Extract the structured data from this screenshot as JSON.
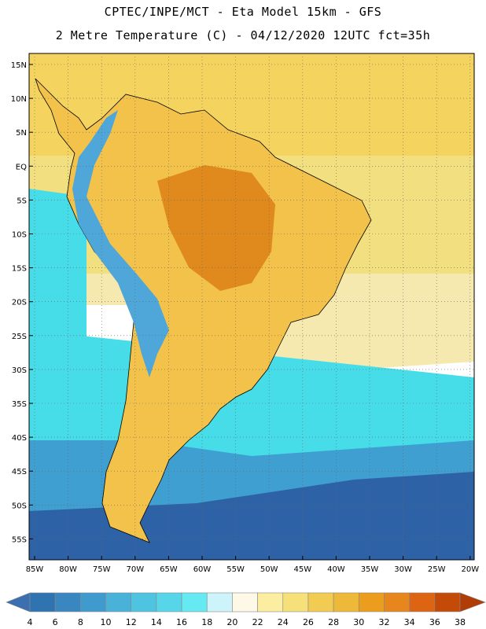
{
  "header": {
    "line1": "CPTEC/INPE/MCT  -   Eta Model 15km  -  GFS",
    "line2": "2 Metre Temperature (C) - 04/12/2020 12UTC fct=35h"
  },
  "map": {
    "lat_labels": [
      "15N",
      "10N",
      "5N",
      "EQ",
      "5S",
      "10S",
      "15S",
      "20S",
      "25S",
      "30S",
      "35S",
      "40S",
      "45S",
      "50S",
      "55S"
    ],
    "lon_labels": [
      "85W",
      "80W",
      "75W",
      "70W",
      "65W",
      "60W",
      "55W",
      "50W",
      "45W",
      "40W",
      "35W",
      "30W",
      "25W",
      "20W"
    ],
    "colors": {
      "ocean_tropical": "#f5d35f",
      "ocean_warm": "#f2df7f",
      "ocean_mid": "#f5e9b0",
      "ocean_cool": "#46dde8",
      "ocean_cold": "#3f9fd0",
      "ocean_polar": "#2e62a6",
      "land": "#f2c24a",
      "land_hot": "#e08a1e",
      "andes": "#4fa6d8"
    }
  },
  "colorbar": {
    "labels": [
      "4",
      "6",
      "8",
      "10",
      "12",
      "14",
      "16",
      "18",
      "20",
      "22",
      "24",
      "26",
      "28",
      "30",
      "32",
      "34",
      "36",
      "38"
    ],
    "under_color": "#3b6fb0",
    "over_color": "#b03c08",
    "colors": [
      "#2f74b0",
      "#3a86c0",
      "#3f9bce",
      "#48b2d8",
      "#4fc4e0",
      "#56d6e8",
      "#66eaf2",
      "#cdf4fb",
      "#fef9e6",
      "#fbeea0",
      "#f6e07a",
      "#f2cc52",
      "#eeb838",
      "#eb9e1e",
      "#e8861e",
      "#dd6412",
      "#c44a08"
    ]
  }
}
